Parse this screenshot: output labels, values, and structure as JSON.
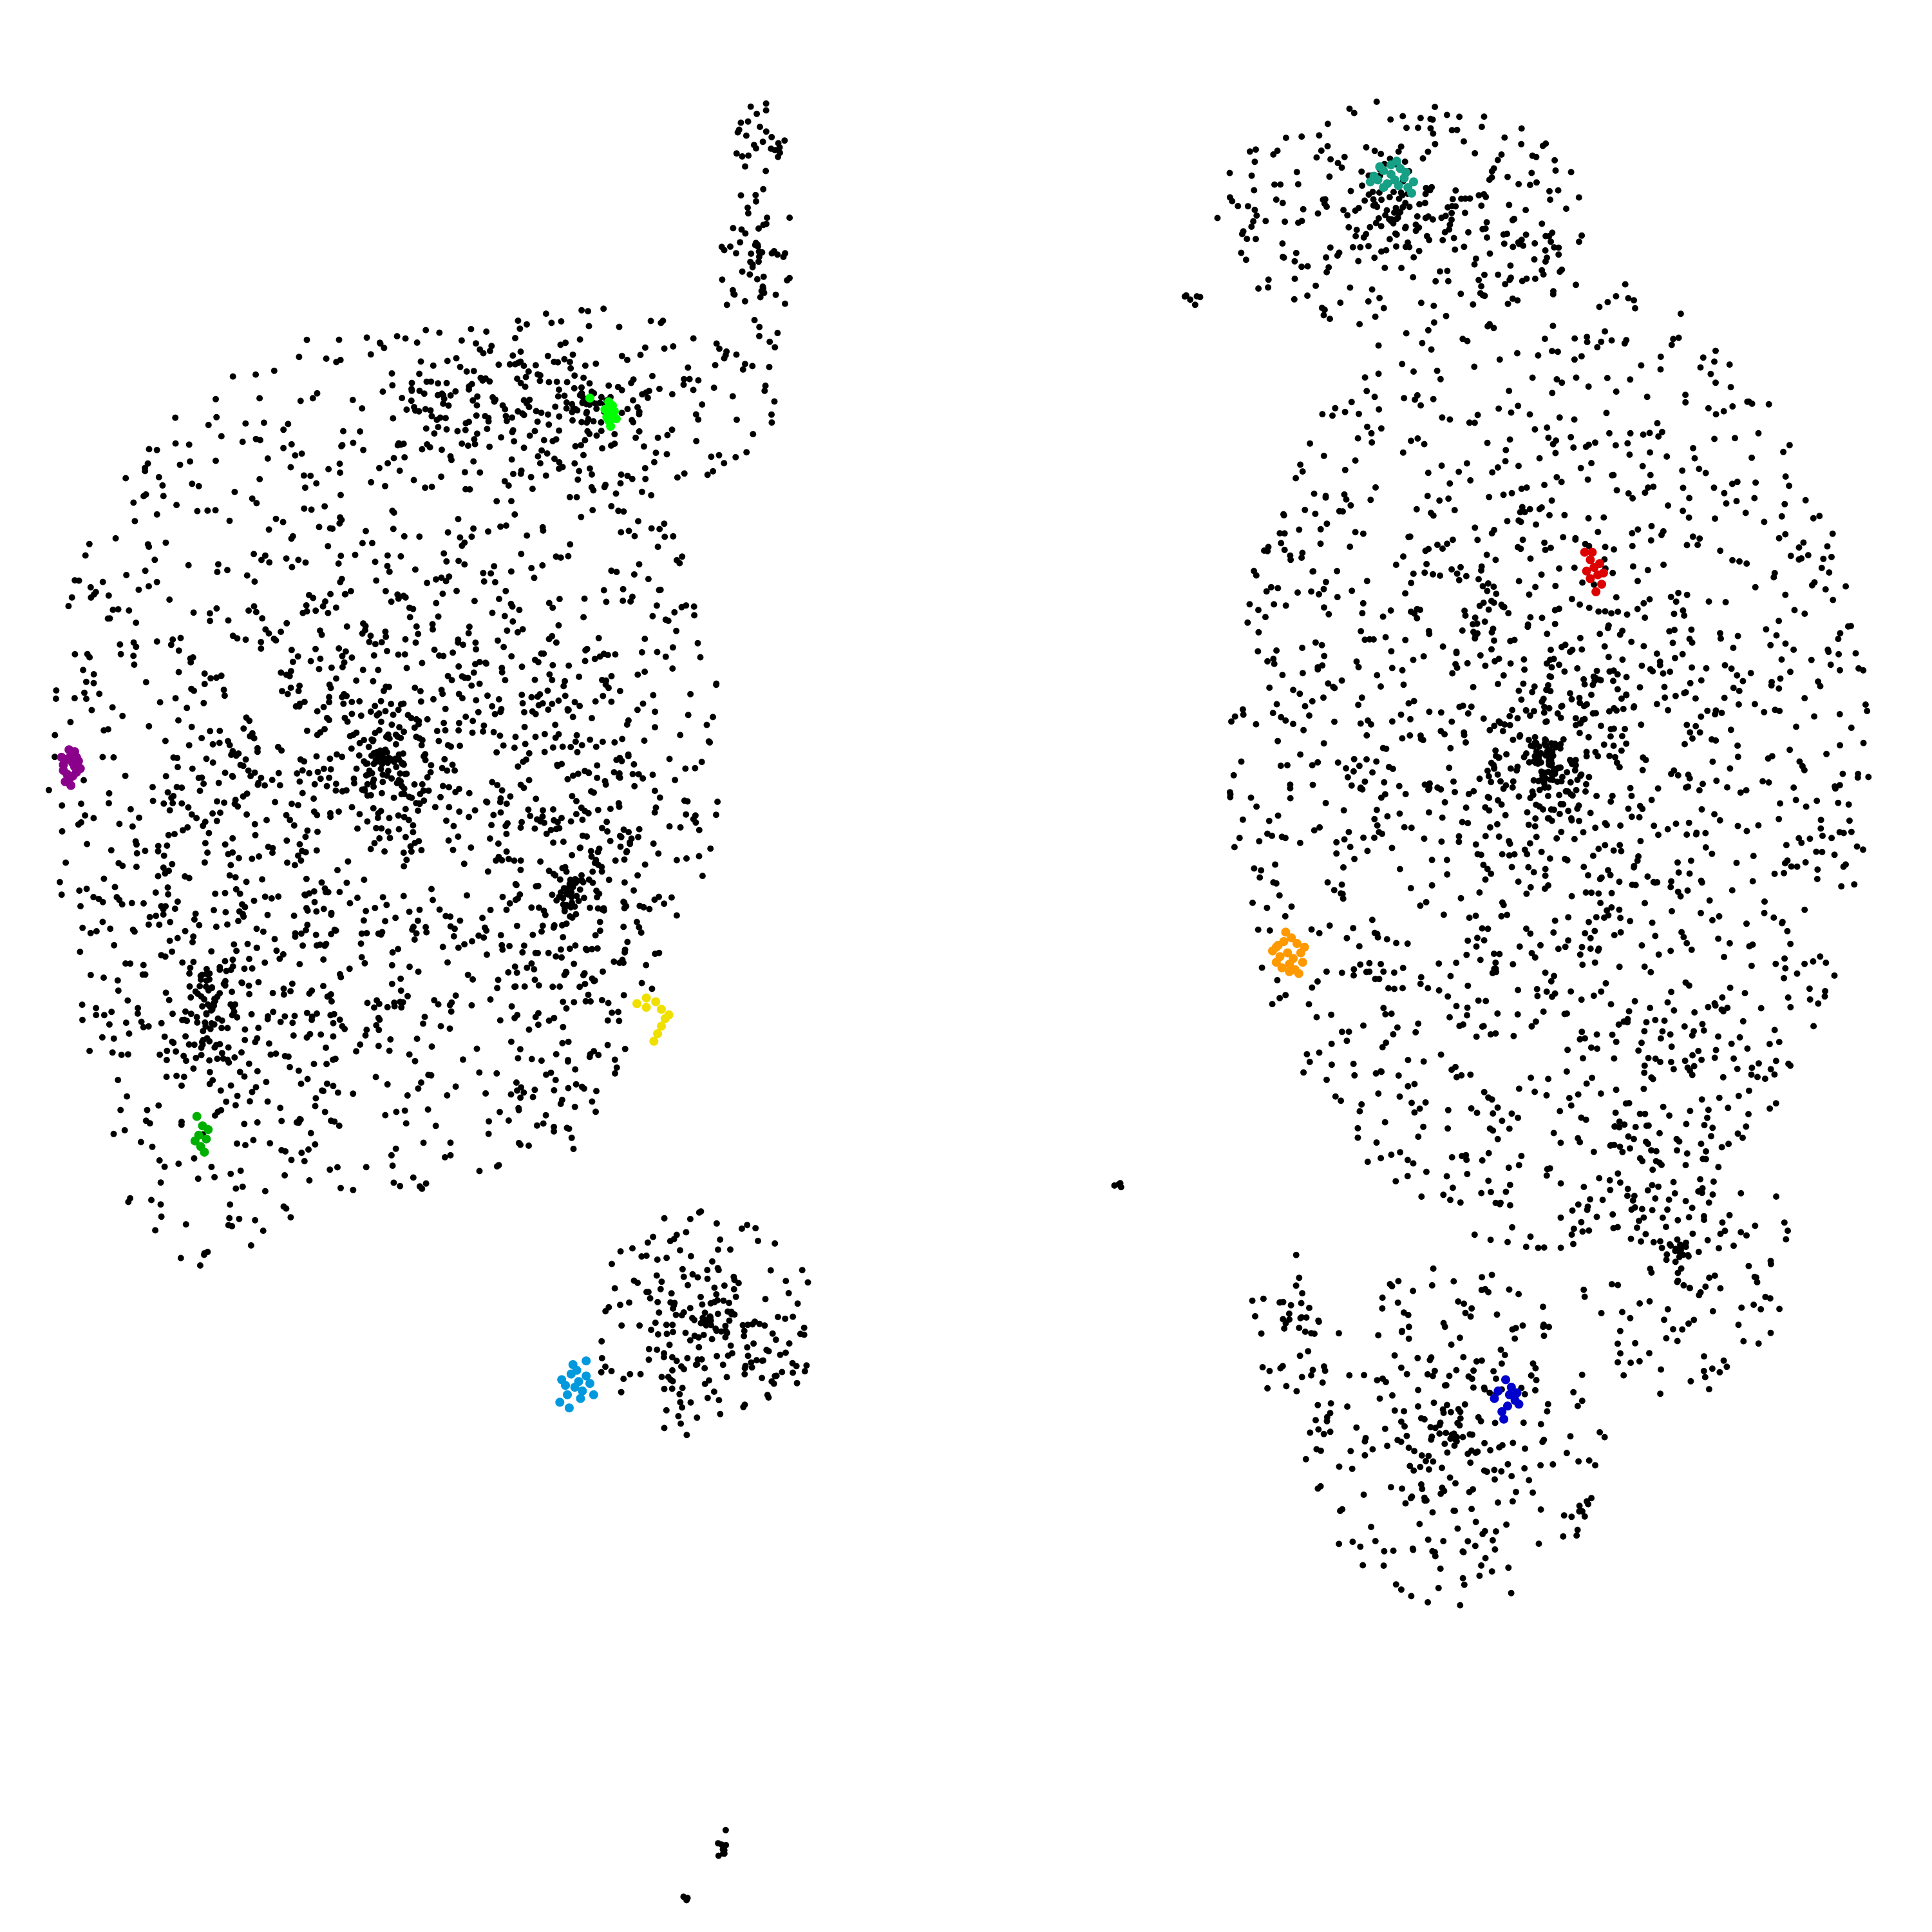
{
  "chart_data": {
    "type": "scatter",
    "title": "",
    "xlabel": "",
    "ylabel": "",
    "axes_visible": false,
    "grid": false,
    "legend": "none",
    "xlim": [
      0,
      1
    ],
    "ylim": [
      0,
      1
    ],
    "background_color": "#ffffff",
    "series": [
      {
        "color": "#000000",
        "role": "background points",
        "regions": [
          {
            "cx": 0.19,
            "cy": 0.61,
            "rx": 0.18,
            "ry": 0.23,
            "n": 1500
          },
          {
            "cx": 0.1,
            "cy": 0.48,
            "rx": 0.07,
            "ry": 0.14,
            "n": 320
          },
          {
            "cx": 0.3,
            "cy": 0.8,
            "rx": 0.1,
            "ry": 0.05,
            "n": 260
          },
          {
            "cx": 0.29,
            "cy": 0.54,
            "rx": 0.04,
            "ry": 0.14,
            "n": 240
          },
          {
            "cx": 0.36,
            "cy": 0.31,
            "rx": 0.06,
            "ry": 0.06,
            "n": 230
          },
          {
            "cx": 0.39,
            "cy": 0.88,
            "rx": 0.02,
            "ry": 0.08,
            "n": 90
          },
          {
            "cx": 0.81,
            "cy": 0.61,
            "rx": 0.17,
            "ry": 0.26,
            "n": 1750
          },
          {
            "cx": 0.73,
            "cy": 0.9,
            "rx": 0.1,
            "ry": 0.06,
            "n": 320
          },
          {
            "cx": 0.76,
            "cy": 0.25,
            "rx": 0.08,
            "ry": 0.09,
            "n": 300
          },
          {
            "cx": 0.88,
            "cy": 0.35,
            "rx": 0.06,
            "ry": 0.08,
            "n": 170
          },
          {
            "cx": 0.67,
            "cy": 0.31,
            "rx": 0.02,
            "ry": 0.04,
            "n": 40
          },
          {
            "cx": 0.37,
            "cy": 0.035,
            "rx": 0.003,
            "ry": 0.01,
            "n": 9
          },
          {
            "cx": 0.35,
            "cy": 0.005,
            "rx": 0.002,
            "ry": 0.003,
            "n": 3
          },
          {
            "cx": 0.58,
            "cy": 0.384,
            "rx": 0.005,
            "ry": 0.002,
            "n": 4
          },
          {
            "cx": 0.62,
            "cy": 0.855,
            "rx": 0.005,
            "ry": 0.008,
            "n": 6
          }
        ]
      },
      {
        "color": "#00ff00",
        "role": "highlighted cluster",
        "points": [
          [
            0.31,
            0.8
          ],
          [
            0.312,
            0.798
          ],
          [
            0.308,
            0.796
          ],
          [
            0.311,
            0.794
          ],
          [
            0.309,
            0.792
          ],
          [
            0.313,
            0.795
          ],
          [
            0.31,
            0.79
          ],
          [
            0.3,
            0.802
          ],
          [
            0.314,
            0.791
          ],
          [
            0.311,
            0.787
          ]
        ]
      },
      {
        "color": "#8b008b",
        "role": "highlighted cluster",
        "points": [
          [
            0.022,
            0.61
          ],
          [
            0.024,
            0.612
          ],
          [
            0.026,
            0.606
          ],
          [
            0.02,
            0.604
          ],
          [
            0.023,
            0.615
          ],
          [
            0.025,
            0.601
          ],
          [
            0.028,
            0.609
          ],
          [
            0.021,
            0.598
          ],
          [
            0.027,
            0.603
          ],
          [
            0.024,
            0.596
          ],
          [
            0.019,
            0.611
          ],
          [
            0.026,
            0.614
          ],
          [
            0.022,
            0.602
          ],
          [
            0.029,
            0.605
          ],
          [
            0.023,
            0.599
          ],
          [
            0.025,
            0.608
          ],
          [
            0.02,
            0.607
          ],
          [
            0.027,
            0.611
          ]
        ]
      },
      {
        "color": "#f0e000",
        "role": "highlighted cluster",
        "points": [
          [
            0.325,
            0.48
          ],
          [
            0.33,
            0.483
          ],
          [
            0.335,
            0.481
          ],
          [
            0.338,
            0.477
          ],
          [
            0.34,
            0.472
          ],
          [
            0.338,
            0.468
          ],
          [
            0.336,
            0.464
          ],
          [
            0.334,
            0.46
          ],
          [
            0.33,
            0.478
          ],
          [
            0.342,
            0.474
          ]
        ]
      },
      {
        "color": "#00b000",
        "role": "highlighted cluster",
        "points": [
          [
            0.091,
            0.42
          ],
          [
            0.094,
            0.415
          ],
          [
            0.097,
            0.413
          ],
          [
            0.092,
            0.41
          ],
          [
            0.096,
            0.408
          ],
          [
            0.093,
            0.404
          ],
          [
            0.09,
            0.407
          ],
          [
            0.095,
            0.401
          ]
        ]
      },
      {
        "color": "#0099dd",
        "role": "highlighted cluster",
        "points": [
          [
            0.285,
            0.28
          ],
          [
            0.29,
            0.283
          ],
          [
            0.294,
            0.279
          ],
          [
            0.298,
            0.282
          ],
          [
            0.292,
            0.276
          ],
          [
            0.288,
            0.272
          ],
          [
            0.296,
            0.274
          ],
          [
            0.3,
            0.278
          ],
          [
            0.284,
            0.268
          ],
          [
            0.291,
            0.288
          ],
          [
            0.298,
            0.29
          ],
          [
            0.302,
            0.272
          ],
          [
            0.287,
            0.277
          ],
          [
            0.295,
            0.27
          ],
          [
            0.289,
            0.265
          ],
          [
            0.293,
            0.285
          ]
        ]
      },
      {
        "color": "#16a085",
        "role": "highlighted cluster",
        "points": [
          [
            0.717,
            0.92
          ],
          [
            0.722,
            0.923
          ],
          [
            0.726,
            0.921
          ],
          [
            0.731,
            0.924
          ],
          [
            0.728,
            0.918
          ],
          [
            0.724,
            0.916
          ],
          [
            0.719,
            0.918
          ],
          [
            0.733,
            0.919
          ],
          [
            0.735,
            0.914
          ],
          [
            0.737,
            0.911
          ],
          [
            0.729,
            0.928
          ],
          [
            0.722,
            0.914
          ],
          [
            0.715,
            0.917
          ],
          [
            0.726,
            0.926
          ],
          [
            0.734,
            0.922
          ],
          [
            0.72,
            0.925
          ],
          [
            0.73,
            0.915
          ],
          [
            0.738,
            0.917
          ]
        ]
      },
      {
        "color": "#dd0000",
        "role": "highlighted cluster",
        "points": [
          [
            0.829,
            0.72
          ],
          [
            0.832,
            0.716
          ],
          [
            0.834,
            0.712
          ],
          [
            0.836,
            0.708
          ],
          [
            0.832,
            0.706
          ],
          [
            0.838,
            0.703
          ],
          [
            0.835,
            0.699
          ],
          [
            0.83,
            0.71
          ],
          [
            0.837,
            0.714
          ],
          [
            0.833,
            0.72
          ],
          [
            0.839,
            0.709
          ]
        ]
      },
      {
        "color": "#ff9900",
        "role": "highlighted cluster",
        "points": [
          [
            0.665,
            0.51
          ],
          [
            0.669,
            0.513
          ],
          [
            0.673,
            0.515
          ],
          [
            0.676,
            0.512
          ],
          [
            0.671,
            0.507
          ],
          [
            0.667,
            0.505
          ],
          [
            0.674,
            0.504
          ],
          [
            0.678,
            0.507
          ],
          [
            0.672,
            0.501
          ],
          [
            0.668,
            0.499
          ],
          [
            0.675,
            0.498
          ],
          [
            0.663,
            0.508
          ],
          [
            0.679,
            0.502
          ],
          [
            0.67,
            0.518
          ],
          [
            0.665,
            0.502
          ],
          [
            0.677,
            0.496
          ],
          [
            0.672,
            0.497
          ],
          [
            0.68,
            0.51
          ],
          [
            0.666,
            0.511
          ]
        ]
      },
      {
        "color": "#0000cc",
        "role": "highlighted cluster",
        "points": [
          [
            0.787,
            0.28
          ],
          [
            0.79,
            0.276
          ],
          [
            0.789,
            0.272
          ],
          [
            0.792,
            0.269
          ],
          [
            0.788,
            0.266
          ],
          [
            0.785,
            0.263
          ],
          [
            0.793,
            0.273
          ],
          [
            0.781,
            0.27
          ],
          [
            0.786,
            0.259
          ],
          [
            0.794,
            0.267
          ],
          [
            0.783,
            0.274
          ]
        ]
      }
    ]
  }
}
